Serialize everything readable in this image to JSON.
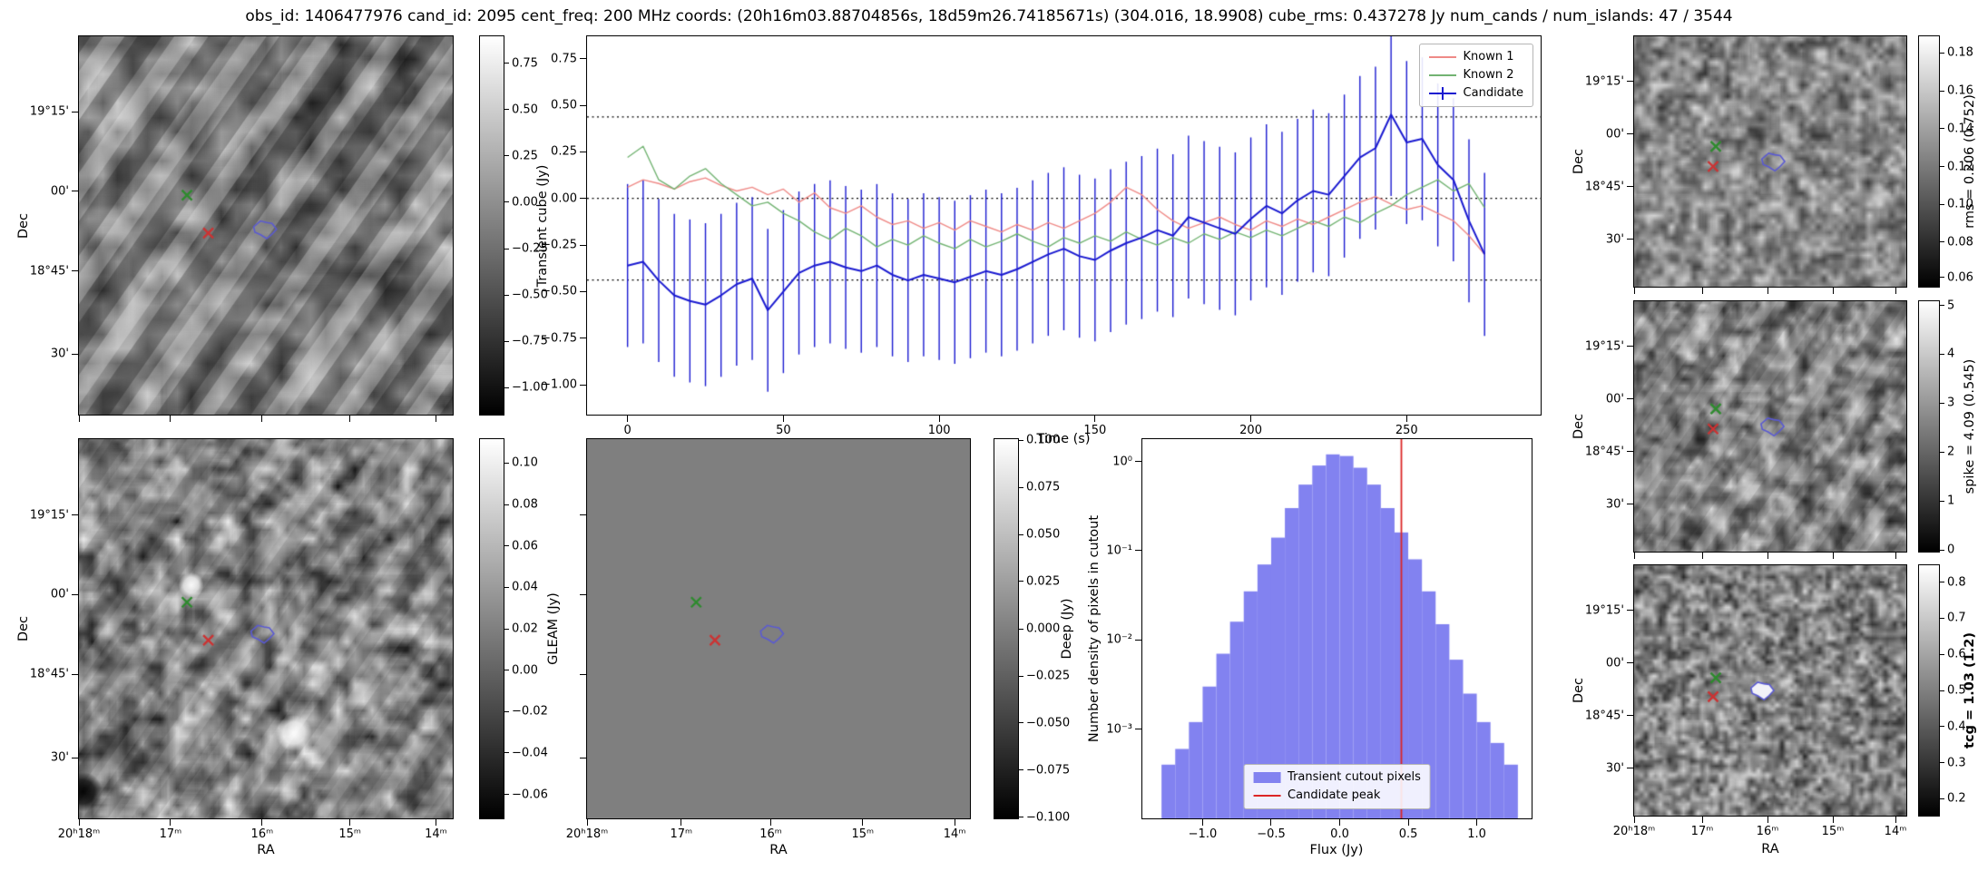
{
  "title": "obs_id: 1406477976 cand_id: 2095 cent_freq: 200 MHz coords: (20h16m03.88704856s, 18d59m26.74185671s) (304.016, 18.9908) cube_rms: 0.437278 Jy num_cands / num_islands: 47 / 3544",
  "colors": {
    "known1": "#ef8a87",
    "known2": "#72b372",
    "candidate": "#1a1ad0",
    "hist_bar": "#8282f0",
    "peak_line": "#dc2626",
    "marker_green": "#2e8b2e",
    "marker_red": "#cc3333",
    "contour": "#5a5ad2"
  },
  "panels": {
    "transient": {
      "ylabel": "Dec",
      "dec_ticks": [
        "19°15'",
        "00'",
        "18°45'",
        "30'"
      ],
      "colorbar_ticks": [
        "0.75",
        "0.50",
        "0.25",
        "0.00",
        "−0.25",
        "−0.50",
        "−0.75",
        "−1.00"
      ],
      "markers": {
        "green_x": [
          0.289,
          0.42
        ],
        "red_x": [
          0.346,
          0.52
        ],
        "candidate_contour": [
          0.497,
          0.51
        ]
      }
    },
    "gleam": {
      "xlabel": "RA",
      "ylabel": "Dec",
      "label": "GLEAM (Jy)",
      "dec_ticks": [
        "19°15'",
        "00'",
        "18°45'",
        "30'"
      ],
      "ra_ticks": [
        "20ʰ18ᵐ",
        "17ᵐ",
        "16ᵐ",
        "15ᵐ",
        "14ᵐ"
      ],
      "colorbar_ticks": [
        "0.10",
        "0.08",
        "0.06",
        "0.04",
        "0.02",
        "0.00",
        "−0.02",
        "−0.04",
        "−0.06"
      ],
      "markers": {
        "green_x": [
          0.289,
          0.43
        ],
        "red_x": [
          0.346,
          0.53
        ],
        "candidate_contour": [
          0.49,
          0.513
        ]
      }
    },
    "deep": {
      "xlabel": "RA",
      "label": "Deep (Jy)",
      "ra_ticks": [
        "20ʰ18ᵐ",
        "17ᵐ",
        "16ᵐ",
        "15ᵐ",
        "14ᵐ"
      ],
      "colorbar_ticks": [
        "0.100",
        "0.075",
        "0.050",
        "0.025",
        "0.000",
        "−0.025",
        "−0.050",
        "−0.075",
        "−0.100"
      ],
      "markers": {
        "green_x": [
          0.285,
          0.43
        ],
        "red_x": [
          0.334,
          0.53
        ],
        "candidate_contour": [
          0.482,
          0.513
        ]
      }
    },
    "rms": {
      "ylabel": "Dec",
      "label": "rms = 0.206 (0.752)",
      "dec_ticks": [
        "19°15'",
        "00'",
        "18°45'",
        "30'"
      ],
      "colorbar_ticks": [
        "0.18",
        "0.16",
        "0.14",
        "0.12",
        "0.10",
        "0.08",
        "0.06"
      ],
      "markers": {
        "green_x": [
          0.3,
          0.44
        ],
        "red_x": [
          0.29,
          0.52
        ],
        "candidate_contour": [
          0.51,
          0.5
        ]
      }
    },
    "spike": {
      "ylabel": "Dec",
      "label": "spike = 4.09 (0.545)",
      "dec_ticks": [
        "19°15'",
        "00'",
        "18°45'",
        "30'"
      ],
      "colorbar_ticks": [
        "5",
        "4",
        "3",
        "2",
        "1",
        "0"
      ],
      "markers": {
        "green_x": [
          0.3,
          0.43
        ],
        "red_x": [
          0.29,
          0.51
        ],
        "candidate_contour": [
          0.507,
          0.5
        ]
      }
    },
    "tcg": {
      "xlabel": "RA",
      "ylabel": "Dec",
      "label": "tcg = 1.03 (1.2)",
      "label_bold": true,
      "dec_ticks": [
        "19°15'",
        "00'",
        "18°45'",
        "30'"
      ],
      "ra_ticks": [
        "20ʰ18ᵐ",
        "17ᵐ",
        "16ᵐ",
        "15ᵐ",
        "14ᵐ"
      ],
      "colorbar_ticks": [
        "0.8",
        "0.7",
        "0.6",
        "0.5",
        "0.4",
        "0.3",
        "0.2"
      ],
      "markers": {
        "green_x": [
          0.3,
          0.45
        ],
        "red_x": [
          0.29,
          0.525
        ],
        "candidate_contour": [
          0.47,
          0.5
        ]
      }
    }
  },
  "chart_data": [
    {
      "type": "line",
      "title": "",
      "ylabel": "Transient cube (Jy)",
      "xlabel": "Time (s)",
      "x": [
        0,
        5,
        10,
        15,
        20,
        25,
        30,
        35,
        40,
        45,
        50,
        55,
        60,
        65,
        70,
        75,
        80,
        85,
        90,
        95,
        100,
        105,
        110,
        115,
        120,
        125,
        130,
        135,
        140,
        145,
        150,
        155,
        160,
        165,
        170,
        175,
        180,
        185,
        190,
        195,
        200,
        205,
        210,
        215,
        220,
        225,
        230,
        235,
        240,
        245,
        250,
        255,
        260,
        265,
        270,
        275
      ],
      "series": [
        {
          "name": "Known 1",
          "color": "#ef8a87",
          "values": [
            0.06,
            0.1,
            0.08,
            0.05,
            0.09,
            0.11,
            0.07,
            0.04,
            0.06,
            0.02,
            0.05,
            -0.02,
            0.03,
            -0.05,
            -0.08,
            -0.04,
            -0.1,
            -0.14,
            -0.12,
            -0.16,
            -0.13,
            -0.17,
            -0.12,
            -0.15,
            -0.18,
            -0.14,
            -0.17,
            -0.13,
            -0.16,
            -0.12,
            -0.08,
            -0.02,
            0.06,
            0.02,
            -0.06,
            -0.12,
            -0.16,
            -0.13,
            -0.1,
            -0.14,
            -0.17,
            -0.12,
            -0.15,
            -0.11,
            -0.14,
            -0.1,
            -0.06,
            -0.02,
            0.01,
            -0.03,
            -0.06,
            -0.04,
            -0.08,
            -0.12,
            -0.2,
            -0.3
          ]
        },
        {
          "name": "Known 2",
          "color": "#72b372",
          "values": [
            0.22,
            0.28,
            0.1,
            0.05,
            0.12,
            0.16,
            0.08,
            0.02,
            -0.04,
            -0.02,
            -0.08,
            -0.12,
            -0.18,
            -0.22,
            -0.16,
            -0.2,
            -0.26,
            -0.22,
            -0.25,
            -0.2,
            -0.24,
            -0.27,
            -0.22,
            -0.26,
            -0.23,
            -0.19,
            -0.23,
            -0.26,
            -0.21,
            -0.24,
            -0.2,
            -0.23,
            -0.18,
            -0.22,
            -0.25,
            -0.21,
            -0.24,
            -0.19,
            -0.22,
            -0.18,
            -0.21,
            -0.17,
            -0.2,
            -0.16,
            -0.12,
            -0.15,
            -0.1,
            -0.13,
            -0.08,
            -0.04,
            0.02,
            0.06,
            0.1,
            0.04,
            0.08,
            -0.05
          ]
        },
        {
          "name": "Candidate",
          "color": "#1a1ad0",
          "yerr": 0.437278,
          "values": [
            -0.36,
            -0.34,
            -0.44,
            -0.52,
            -0.55,
            -0.57,
            -0.52,
            -0.46,
            -0.43,
            -0.6,
            -0.5,
            -0.4,
            -0.36,
            -0.34,
            -0.37,
            -0.39,
            -0.36,
            -0.41,
            -0.44,
            -0.41,
            -0.43,
            -0.45,
            -0.42,
            -0.39,
            -0.41,
            -0.38,
            -0.34,
            -0.3,
            -0.27,
            -0.31,
            -0.33,
            -0.28,
            -0.24,
            -0.21,
            -0.17,
            -0.2,
            -0.1,
            -0.13,
            -0.16,
            -0.19,
            -0.11,
            -0.04,
            -0.08,
            -0.01,
            0.04,
            0.02,
            0.12,
            0.22,
            0.27,
            0.45,
            0.3,
            0.32,
            0.18,
            0.1,
            -0.12,
            -0.3
          ]
        }
      ],
      "hlines": [
        0.437278,
        0,
        -0.437278
      ],
      "xlim": [
        -13,
        293
      ],
      "ylim": [
        -1.16,
        0.87
      ],
      "xticks": [
        0,
        50,
        100,
        150,
        200,
        250
      ],
      "yticks": [
        0.75,
        0.5,
        0.25,
        0,
        -0.25,
        -0.5,
        -0.75,
        -1
      ],
      "legend_position": "upper right"
    },
    {
      "type": "bar",
      "ylabel": "Number density of pixels in cutout",
      "xlabel": "Flux (Jy)",
      "yscale": "log",
      "bin_centers": [
        -1.25,
        -1.15,
        -1.05,
        -0.95,
        -0.85,
        -0.75,
        -0.65,
        -0.55,
        -0.45,
        -0.35,
        -0.25,
        -0.15,
        -0.05,
        0.05,
        0.15,
        0.25,
        0.35,
        0.45,
        0.55,
        0.65,
        0.75,
        0.85,
        0.95,
        1.05,
        1.15,
        1.25
      ],
      "densities": [
        0.0004,
        0.0006,
        0.0012,
        0.003,
        0.007,
        0.016,
        0.035,
        0.07,
        0.14,
        0.3,
        0.55,
        0.9,
        1.2,
        1.15,
        0.85,
        0.55,
        0.3,
        0.16,
        0.08,
        0.035,
        0.015,
        0.006,
        0.0025,
        0.0012,
        0.0007,
        0.0004
      ],
      "bar_width": 0.1,
      "bar_color": "#8282f0",
      "vline": {
        "x": 0.45,
        "label": "Candidate peak",
        "color": "#dc2626"
      },
      "xlim": [
        -1.44,
        1.4
      ],
      "ylim_log": [
        -4,
        0.25
      ],
      "xticks": [
        -1.0,
        -0.5,
        0.0,
        0.5,
        1.0
      ],
      "ytick_values": [
        1,
        0.1,
        0.01,
        0.001
      ],
      "ytick_labels": [
        "10⁰",
        "10⁻¹",
        "10⁻²",
        "10⁻³"
      ],
      "legend": [
        {
          "label": "Transient cutout pixels",
          "type": "patch"
        },
        {
          "label": "Candidate peak",
          "type": "line"
        }
      ]
    }
  ]
}
